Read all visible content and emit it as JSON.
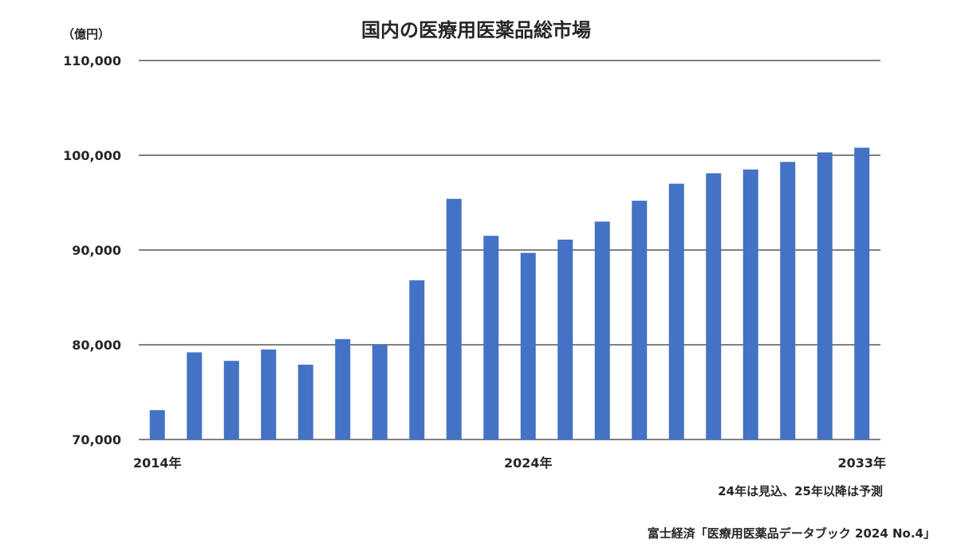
{
  "chart_data": {
    "type": "bar",
    "title": "国内の医療用医薬品総市場",
    "unit_label": "（億円）",
    "ylim": [
      70000,
      110000
    ],
    "y_ticks": [
      "70,000",
      "80,000",
      "90,000",
      "100,000",
      "110,000"
    ],
    "y_tick_values": [
      70000,
      80000,
      90000,
      100000,
      110000
    ],
    "grid": true,
    "categories": [
      "2014",
      "2015",
      "2016",
      "2017",
      "2018",
      "2019",
      "2020",
      "2021",
      "2022",
      "2023",
      "2024",
      "2025",
      "2026",
      "2027",
      "2028",
      "2029",
      "2030",
      "2031",
      "2032",
      "2033"
    ],
    "x_tick_labels": [
      {
        "index": 0,
        "label": "2014年"
      },
      {
        "index": 10,
        "label": "2024年"
      },
      {
        "index": 19,
        "label": "2033年"
      }
    ],
    "series": [
      {
        "color": "#4472c4",
        "values": [
          73100,
          79200,
          78300,
          79500,
          77900,
          80600,
          80000,
          86800,
          95400,
          91500,
          89700,
          91100,
          93000,
          95200,
          97000,
          98100,
          98500,
          99300,
          100300,
          100800
        ]
      }
    ]
  },
  "note": "24年は見込、25年以降は予測",
  "source": "富士経済「医療用医薬品データブック 2024 No.4」"
}
